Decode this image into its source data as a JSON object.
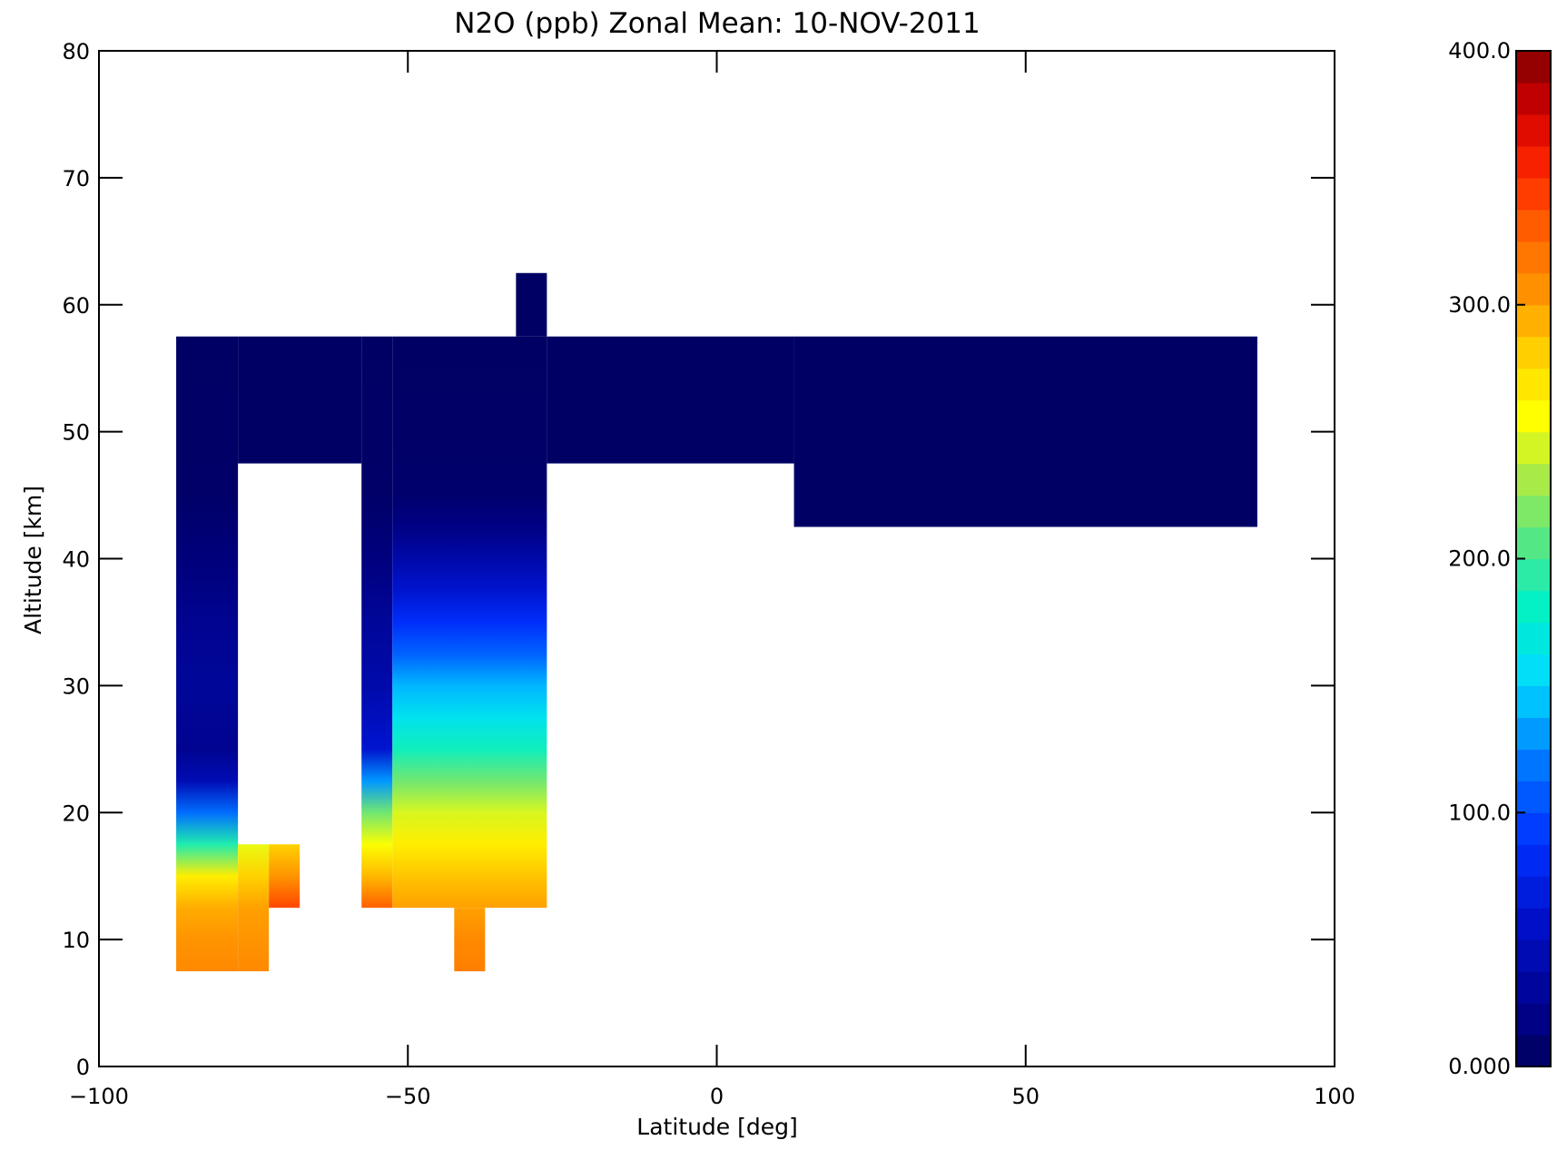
{
  "chart_data": {
    "type": "heatmap",
    "title": "N2O (ppb) Zonal Mean: 10-NOV-2011",
    "xlabel": "Latitude [deg]",
    "ylabel": "Altitude [km]",
    "xlim": [
      -100,
      100
    ],
    "ylim": [
      0,
      80
    ],
    "xticks": [
      -100,
      -50,
      0,
      50,
      100
    ],
    "xtick_labels": [
      "−100",
      "−50",
      "0",
      "50",
      "100"
    ],
    "yticks": [
      0,
      10,
      20,
      30,
      40,
      50,
      60,
      70,
      80
    ],
    "ytick_labels": [
      "0",
      "10",
      "20",
      "30",
      "40",
      "50",
      "60",
      "70",
      "80"
    ],
    "colorbar": {
      "min": 0,
      "max": 400,
      "ticks": [
        0,
        100,
        200,
        300,
        400
      ],
      "tick_labels": [
        "0.000",
        "100.0",
        "200.0",
        "300.0",
        "400.0"
      ],
      "colormap": "rainbow (dark blue to dark red)"
    },
    "grid": false,
    "lat_bands": [
      {
        "lat_range": [
          -87.5,
          -77.5
        ],
        "alt_range": [
          7.5,
          57.5
        ],
        "profile": [
          [
            7.5,
            310
          ],
          [
            10,
            305
          ],
          [
            12.5,
            295
          ],
          [
            15,
            265
          ],
          [
            17.5,
            190
          ],
          [
            20,
            115
          ],
          [
            22.5,
            45
          ],
          [
            25,
            25
          ],
          [
            30,
            30
          ],
          [
            35,
            25
          ],
          [
            40,
            14
          ],
          [
            45,
            6
          ],
          [
            57.5,
            4
          ]
        ]
      },
      {
        "lat_range": [
          -77.5,
          -72.5
        ],
        "alt_range": [
          7.5,
          17.5
        ],
        "profile": [
          [
            7.5,
            310
          ],
          [
            10,
            305
          ],
          [
            12.5,
            300
          ],
          [
            15,
            280
          ],
          [
            17.5,
            250
          ]
        ]
      },
      {
        "lat_range": [
          -72.5,
          -67.5
        ],
        "alt_range": [
          12.5,
          17.5
        ],
        "profile": [
          [
            12.5,
            340
          ],
          [
            15,
            305
          ],
          [
            17.5,
            280
          ]
        ]
      },
      {
        "lat_range": [
          -57.5,
          -52.5
        ],
        "alt_range": [
          12.5,
          57.5
        ],
        "profile": [
          [
            12.5,
            330
          ],
          [
            15,
            290
          ],
          [
            17.5,
            255
          ],
          [
            20,
            215
          ],
          [
            22.5,
            130
          ],
          [
            25,
            60
          ],
          [
            30,
            40
          ],
          [
            35,
            30
          ],
          [
            40,
            15
          ],
          [
            45,
            6
          ],
          [
            57.5,
            4
          ]
        ]
      },
      {
        "lat_range": [
          -52.5,
          -27.5
        ],
        "alt_range": [
          12.5,
          57.5
        ],
        "profile": [
          [
            12.5,
            300
          ],
          [
            15,
            285
          ],
          [
            17.5,
            265
          ],
          [
            20,
            245
          ],
          [
            22.5,
            215
          ],
          [
            25,
            185
          ],
          [
            27.5,
            160
          ],
          [
            30,
            140
          ],
          [
            32.5,
            110
          ],
          [
            35,
            85
          ],
          [
            37.5,
            60
          ],
          [
            40,
            38
          ],
          [
            42.5,
            18
          ],
          [
            45,
            8
          ],
          [
            50,
            5
          ],
          [
            57.5,
            4
          ]
        ]
      },
      {
        "lat_range": [
          -42.5,
          -37.5
        ],
        "alt_range": [
          7.5,
          12.5
        ],
        "profile": [
          [
            7.5,
            315
          ],
          [
            10,
            310
          ],
          [
            12.5,
            300
          ]
        ]
      },
      {
        "lat_range": [
          -32.5,
          -27.5
        ],
        "alt_range": [
          57.5,
          62.5
        ],
        "profile": [
          [
            57.5,
            4
          ],
          [
            62.5,
            4
          ]
        ]
      },
      {
        "lat_range": [
          -77.5,
          -57.5
        ],
        "alt_range": [
          47.5,
          57.5
        ],
        "profile": [
          [
            47.5,
            4
          ],
          [
            57.5,
            4
          ]
        ]
      },
      {
        "lat_range": [
          -27.5,
          12.5
        ],
        "alt_range": [
          47.5,
          57.5
        ],
        "profile": [
          [
            47.5,
            4
          ],
          [
            57.5,
            4
          ]
        ]
      },
      {
        "lat_range": [
          12.5,
          87.5
        ],
        "alt_range": [
          42.5,
          57.5
        ],
        "profile": [
          [
            42.5,
            4
          ],
          [
            57.5,
            4
          ]
        ]
      }
    ]
  }
}
